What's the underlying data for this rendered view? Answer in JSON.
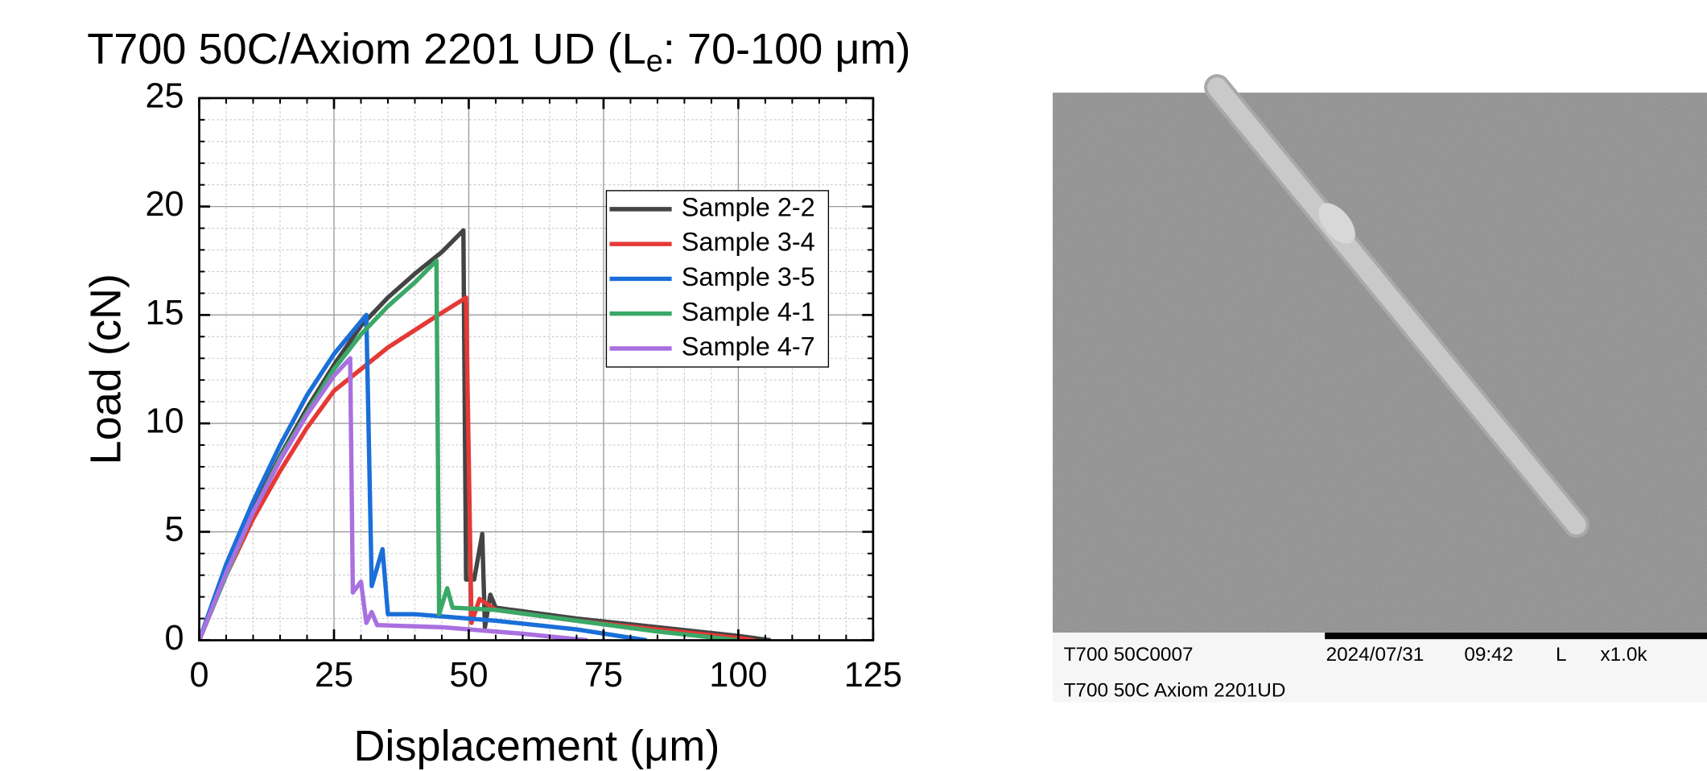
{
  "chart_data": {
    "type": "line",
    "title_parts": [
      "T700 50C/Axiom 2201 UD (L",
      "e",
      ": 70-100 μm)"
    ],
    "x_label": "Displacement (μm)",
    "y_label": "Load (cN)",
    "xlim": [
      0,
      125
    ],
    "xticks": [
      0,
      25,
      50,
      75,
      100,
      125
    ],
    "ylim": [
      0,
      25
    ],
    "yticks": [
      0,
      5,
      10,
      15,
      20,
      25
    ],
    "grid": true,
    "legend": "upper right",
    "series": [
      {
        "name": "Sample 2-2",
        "color": "#444444",
        "x": [
          0,
          5,
          10,
          15,
          20,
          25,
          30,
          35,
          40,
          45,
          49,
          49.5,
          51,
          52.5,
          53,
          54,
          55,
          70,
          85,
          100,
          106
        ],
        "values": [
          0,
          3.2,
          6,
          8.5,
          10.7,
          12.7,
          14.5,
          15.8,
          16.9,
          17.9,
          18.9,
          2.8,
          2.8,
          4.9,
          0.6,
          2.1,
          1.5,
          1.0,
          0.6,
          0.2,
          0
        ]
      },
      {
        "name": "Sample 3-4",
        "color": "#e53935",
        "x": [
          0,
          5,
          10,
          15,
          20,
          25,
          30,
          35,
          40,
          45,
          49.5,
          50.5,
          52,
          55,
          70,
          85,
          100,
          103
        ],
        "values": [
          0,
          3,
          5.6,
          7.8,
          9.8,
          11.5,
          12.5,
          13.5,
          14.3,
          15.1,
          15.8,
          0.8,
          1.9,
          1.4,
          0.9,
          0.5,
          0.1,
          0
        ]
      },
      {
        "name": "Sample 3-5",
        "color": "#1a6fd8",
        "x": [
          0,
          5,
          10,
          15,
          20,
          25,
          31,
          32,
          34,
          35,
          40,
          55,
          70,
          83
        ],
        "values": [
          0,
          3.5,
          6.4,
          9,
          11.3,
          13.2,
          15,
          2.5,
          4.2,
          1.2,
          1.2,
          0.9,
          0.5,
          0
        ]
      },
      {
        "name": "Sample 4-1",
        "color": "#3aa867",
        "x": [
          0,
          5,
          10,
          15,
          20,
          25,
          30,
          35,
          40,
          44,
          44.5,
          46,
          47,
          55,
          70,
          85,
          100
        ],
        "values": [
          0,
          3.0,
          5.9,
          8.4,
          10.5,
          12.5,
          14.1,
          15.4,
          16.5,
          17.5,
          1.2,
          2.4,
          1.5,
          1.4,
          0.9,
          0.4,
          0
        ]
      },
      {
        "name": "Sample 4-7",
        "color": "#a970e0",
        "x": [
          0,
          5,
          10,
          15,
          20,
          25,
          28,
          28.5,
          30,
          31,
          32,
          33,
          45,
          60,
          72
        ],
        "values": [
          0,
          3.1,
          5.9,
          8.3,
          10.4,
          12.2,
          13,
          2.2,
          2.7,
          0.8,
          1.3,
          0.7,
          0.6,
          0.3,
          0
        ]
      }
    ]
  },
  "image_panel": {
    "file_id": "T700 50C0007",
    "date": "2024/07/31",
    "time": "09:42",
    "mode": "L",
    "magnification": "x1.0k",
    "sample": "T700 50C Axiom 2201UD"
  }
}
